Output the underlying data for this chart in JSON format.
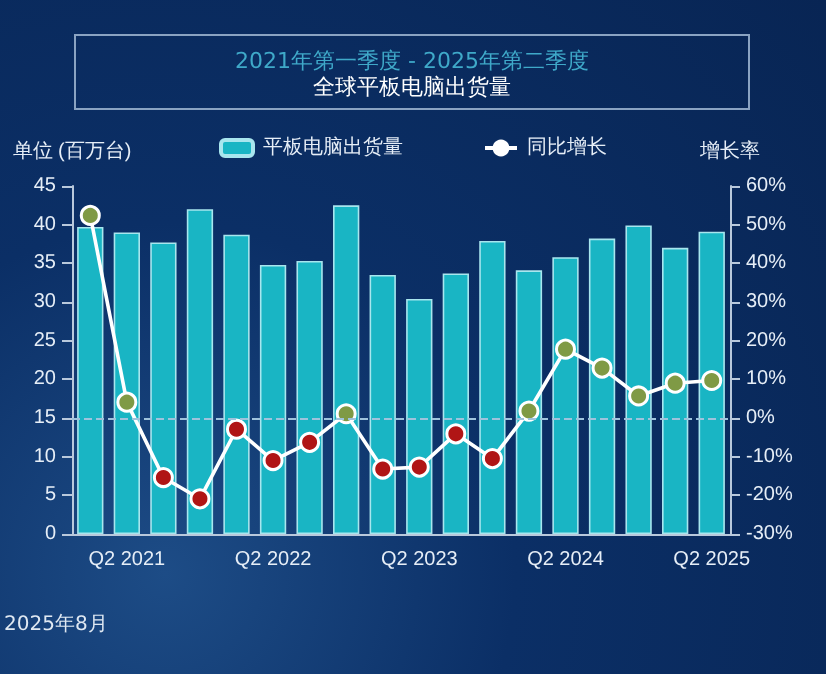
{
  "chart_data": {
    "type": "bar",
    "title": "全球平板电脑出货量",
    "subtitle": "2021年第一季度 - 2025年第二季度",
    "ylabel": "单位 (百万台)",
    "y2label": "增长率",
    "categories": [
      null,
      "Q2 2021",
      null,
      null,
      null,
      "Q2 2022",
      null,
      null,
      null,
      "Q2 2023",
      null,
      null,
      null,
      "Q2 2024",
      null,
      null,
      null,
      "Q2 2025"
    ],
    "series": [
      {
        "name": "平板电脑出货量",
        "color": "#19b5c4",
        "values": [
          39.7,
          39.0,
          37.7,
          42.0,
          38.7,
          34.8,
          35.3,
          42.5,
          33.5,
          30.4,
          33.7,
          37.9,
          34.1,
          35.8,
          38.2,
          39.9,
          37.0,
          39.1
        ]
      },
      {
        "name": "同比增长",
        "type": "line",
        "axis": "y2",
        "color": "#ffffff",
        "marker": "circle",
        "colors": [
          "#7f9a45",
          "#7f9a45",
          "#b01515",
          "#b01515",
          "#b01515",
          "#b01515",
          "#b01515",
          "#7f9a45",
          "#b01515",
          "#b01515",
          "#b01515",
          "#b01515",
          "#7f9a45",
          "#7f9a45",
          "#7f9a45",
          "#7f9a45",
          "#7f9a45",
          "#7f9a45"
        ],
        "values": [
          52.4,
          4.1,
          -15.4,
          -20.9,
          -2.9,
          -11.0,
          -6.3,
          1.1,
          -13.2,
          -12.7,
          -4.1,
          -10.5,
          1.8,
          17.8,
          12.9,
          5.7,
          9.0,
          9.7
        ]
      }
    ],
    "ylim": [
      0,
      45
    ],
    "yticks": [
      0,
      5,
      10,
      15,
      20,
      25,
      30,
      35,
      40,
      45
    ],
    "y2lim": [
      -30,
      60
    ],
    "y2ticks": [
      {
        "value": -30,
        "label": "-30%"
      },
      {
        "value": -20,
        "label": "-20%"
      },
      {
        "value": -10,
        "label": "-10%"
      },
      {
        "value": 0,
        "label": "0%"
      },
      {
        "value": 10,
        "label": "10%"
      },
      {
        "value": 20,
        "label": "20%"
      },
      {
        "value": 30,
        "label": "30%"
      },
      {
        "value": 40,
        "label": "40%"
      },
      {
        "value": 50,
        "label": "50%"
      },
      {
        "value": 60,
        "label": "60%"
      }
    ],
    "ref_lines": [
      {
        "axis": "y2",
        "value": 0,
        "color": "#9fc3dc",
        "line_style": "dashed"
      }
    ],
    "annotations": [
      "2025年8月"
    ],
    "legend": "top",
    "grid": false
  }
}
